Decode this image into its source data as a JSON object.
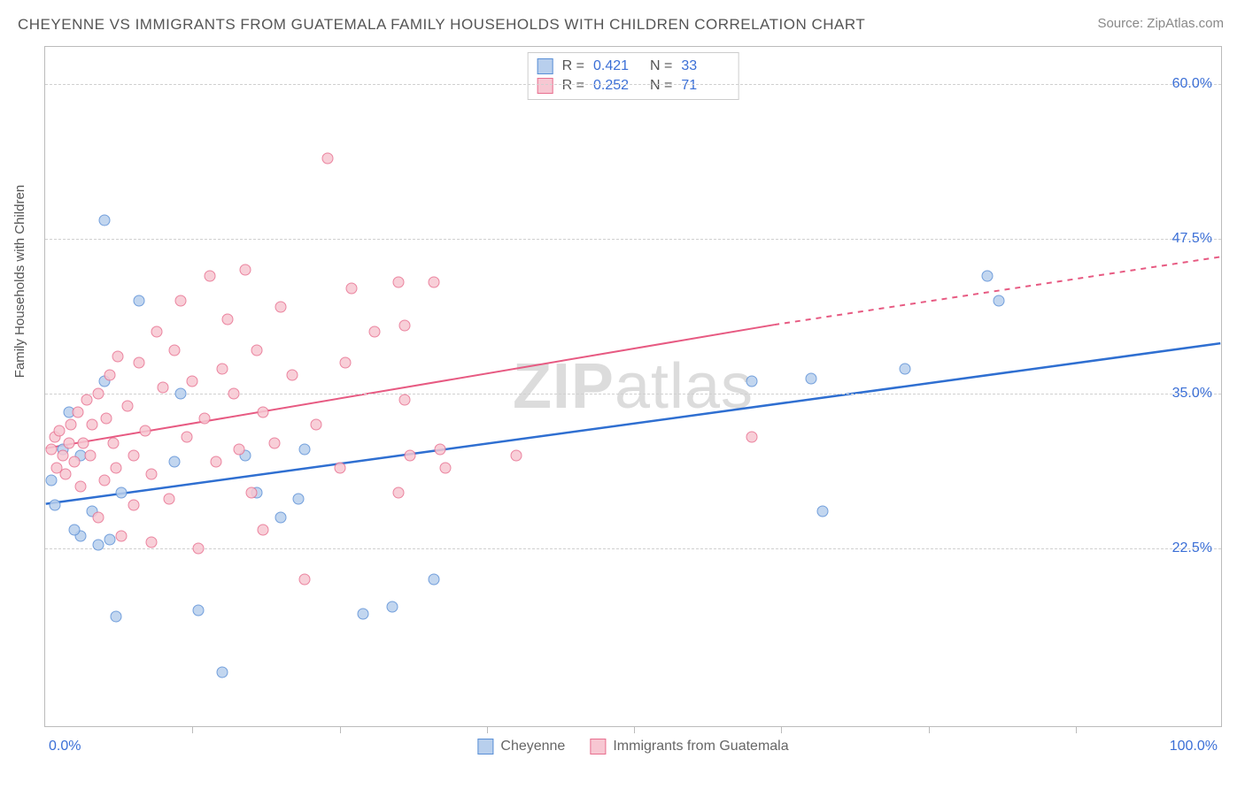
{
  "title": "CHEYENNE VS IMMIGRANTS FROM GUATEMALA FAMILY HOUSEHOLDS WITH CHILDREN CORRELATION CHART",
  "source_label": "Source: ZipAtlas.com",
  "watermark": {
    "bold": "ZIP",
    "light": "atlas"
  },
  "y_axis_label": "Family Households with Children",
  "chart": {
    "type": "scatter",
    "background_color": "#ffffff",
    "grid_color": "#d0d0d0",
    "border_color": "#bbbbbb",
    "xlim": [
      0,
      100
    ],
    "ylim": [
      8,
      63
    ],
    "xticks": [
      0,
      12.5,
      25,
      37.5,
      50,
      62.5,
      75,
      87.5,
      100
    ],
    "xticks_labeled": [
      {
        "pos": 0,
        "label": "0.0%"
      },
      {
        "pos": 100,
        "label": "100.0%"
      }
    ],
    "yticks": [
      {
        "pos": 22.5,
        "label": "22.5%"
      },
      {
        "pos": 35.0,
        "label": "35.0%"
      },
      {
        "pos": 47.5,
        "label": "47.5%"
      },
      {
        "pos": 60.0,
        "label": "60.0%"
      }
    ],
    "label_color": "#3b6fd6",
    "label_fontsize": 16,
    "axis_text_color": "#555555"
  },
  "series": [
    {
      "name": "Cheyenne",
      "color_fill": "#b8cfed",
      "color_stroke": "#5a8fd6",
      "marker_size": 13,
      "R": "0.421",
      "N": "33",
      "trend": {
        "color": "#2f6fd1",
        "width": 2.5,
        "solid": {
          "x1": 0,
          "y1": 26.0,
          "x2": 100,
          "y2": 39.0
        },
        "dashed": null
      },
      "points": [
        [
          0.5,
          28.0
        ],
        [
          0.8,
          26.0
        ],
        [
          2.0,
          33.5
        ],
        [
          3.0,
          30.0
        ],
        [
          5.0,
          49.0
        ],
        [
          3.0,
          23.5
        ],
        [
          4.5,
          22.8
        ],
        [
          5.5,
          23.2
        ],
        [
          4.0,
          25.5
        ],
        [
          2.5,
          24.0
        ],
        [
          6.0,
          17.0
        ],
        [
          13.0,
          17.5
        ],
        [
          15.0,
          12.5
        ],
        [
          27.0,
          17.2
        ],
        [
          29.5,
          17.8
        ],
        [
          33.0,
          20.0
        ],
        [
          22.0,
          30.5
        ],
        [
          5.0,
          36.0
        ],
        [
          8.0,
          42.5
        ],
        [
          11.0,
          29.5
        ],
        [
          11.5,
          35.0
        ],
        [
          17.0,
          30.0
        ],
        [
          18.0,
          27.0
        ],
        [
          21.5,
          26.5
        ],
        [
          20.0,
          25.0
        ],
        [
          60.0,
          36.0
        ],
        [
          65.0,
          36.2
        ],
        [
          66.0,
          25.5
        ],
        [
          73.0,
          37.0
        ],
        [
          80.0,
          44.5
        ],
        [
          81.0,
          42.5
        ],
        [
          1.5,
          30.5
        ],
        [
          6.5,
          27.0
        ]
      ]
    },
    {
      "name": "Immigrants from Guatemala",
      "color_fill": "#f7c7d2",
      "color_stroke": "#e86f8f",
      "marker_size": 13,
      "R": "0.252",
      "N": "71",
      "trend": {
        "color": "#e75a82",
        "width": 2,
        "solid": {
          "x1": 0,
          "y1": 30.5,
          "x2": 62,
          "y2": 40.5
        },
        "dashed": {
          "x1": 62,
          "y1": 40.5,
          "x2": 100,
          "y2": 46.0
        }
      },
      "points": [
        [
          0.5,
          30.5
        ],
        [
          0.8,
          31.5
        ],
        [
          1.0,
          29.0
        ],
        [
          1.2,
          32.0
        ],
        [
          1.5,
          30.0
        ],
        [
          1.7,
          28.5
        ],
        [
          2.0,
          31.0
        ],
        [
          2.2,
          32.5
        ],
        [
          2.5,
          29.5
        ],
        [
          2.8,
          33.5
        ],
        [
          3.0,
          27.5
        ],
        [
          3.2,
          31.0
        ],
        [
          3.5,
          34.5
        ],
        [
          3.8,
          30.0
        ],
        [
          4.0,
          32.5
        ],
        [
          4.5,
          35.0
        ],
        [
          5.0,
          28.0
        ],
        [
          5.2,
          33.0
        ],
        [
          5.5,
          36.5
        ],
        [
          5.8,
          31.0
        ],
        [
          6.0,
          29.0
        ],
        [
          6.2,
          38.0
        ],
        [
          6.5,
          23.5
        ],
        [
          7.0,
          34.0
        ],
        [
          7.5,
          30.0
        ],
        [
          8.0,
          37.5
        ],
        [
          8.5,
          32.0
        ],
        [
          9.0,
          28.5
        ],
        [
          9.5,
          40.0
        ],
        [
          10.0,
          35.5
        ],
        [
          10.5,
          26.5
        ],
        [
          11.0,
          38.5
        ],
        [
          11.5,
          42.5
        ],
        [
          12.0,
          31.5
        ],
        [
          12.5,
          36.0
        ],
        [
          13.0,
          22.5
        ],
        [
          13.5,
          33.0
        ],
        [
          14.0,
          44.5
        ],
        [
          14.5,
          29.5
        ],
        [
          15.0,
          37.0
        ],
        [
          15.5,
          41.0
        ],
        [
          16.0,
          35.0
        ],
        [
          16.5,
          30.5
        ],
        [
          17.0,
          45.0
        ],
        [
          17.5,
          27.0
        ],
        [
          18.0,
          38.5
        ],
        [
          18.5,
          33.5
        ],
        [
          19.5,
          31.0
        ],
        [
          20.0,
          42.0
        ],
        [
          21.0,
          36.5
        ],
        [
          22.0,
          20.0
        ],
        [
          23.0,
          32.5
        ],
        [
          24.0,
          54.0
        ],
        [
          25.0,
          29.0
        ],
        [
          25.5,
          37.5
        ],
        [
          26.0,
          43.5
        ],
        [
          28.0,
          40.0
        ],
        [
          30.0,
          44.0
        ],
        [
          30.5,
          34.5
        ],
        [
          31.0,
          30.0
        ],
        [
          33.0,
          44.0
        ],
        [
          33.5,
          30.5
        ],
        [
          34.0,
          29.0
        ],
        [
          40.0,
          30.0
        ],
        [
          30.0,
          27.0
        ],
        [
          30.5,
          40.5
        ],
        [
          18.5,
          24.0
        ],
        [
          9.0,
          23.0
        ],
        [
          7.5,
          26.0
        ],
        [
          4.5,
          25.0
        ],
        [
          60.0,
          31.5
        ]
      ]
    }
  ],
  "legend_bottom": [
    {
      "label": "Cheyenne",
      "fill": "#b8cfed",
      "stroke": "#5a8fd6"
    },
    {
      "label": "Immigrants from Guatemala",
      "fill": "#f7c7d2",
      "stroke": "#e86f8f"
    }
  ]
}
